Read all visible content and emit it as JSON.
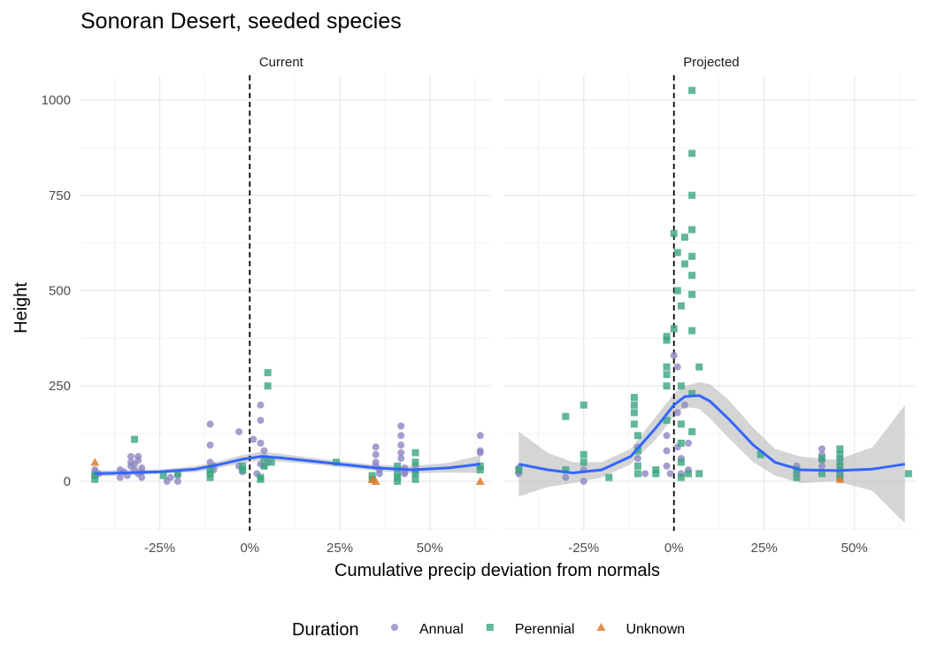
{
  "chart_data": {
    "type": "scatter",
    "title": "Sonoran Desert, seeded species",
    "xlabel": "Cumulative precip deviation from normals",
    "ylabel": "Height",
    "xlim": [
      -0.47,
      0.67
    ],
    "ylim": [
      -130,
      1065
    ],
    "x_ticks": [
      -0.25,
      0,
      0.25,
      0.5
    ],
    "x_tick_labels": [
      "-25%",
      "0%",
      "25%",
      "50%"
    ],
    "y_ticks": [
      0,
      250,
      500,
      750,
      1000
    ],
    "y_tick_labels": [
      "0",
      "250",
      "500",
      "750",
      "1000"
    ],
    "grid": true,
    "reference_line_x": 0,
    "legend": {
      "title": "Duration",
      "position": "bottom",
      "entries": [
        {
          "label": "Annual",
          "color": "#8d87c2",
          "shape": "circle"
        },
        {
          "label": "Perennial",
          "color": "#3aa57e",
          "shape": "square"
        },
        {
          "label": "Unknown",
          "color": "#e07b28",
          "shape": "triangle"
        }
      ]
    },
    "smooth_color": "#3366ff",
    "band_color": "#bfbfbf",
    "panels": [
      {
        "name": "Current",
        "series": [
          {
            "name": "Annual",
            "points": [
              [
                -0.43,
                15
              ],
              [
                -0.43,
                25
              ],
              [
                -0.43,
                30
              ],
              [
                -0.42,
                20
              ],
              [
                -0.36,
                10
              ],
              [
                -0.36,
                30
              ],
              [
                -0.35,
                25
              ],
              [
                -0.34,
                15
              ],
              [
                -0.33,
                40
              ],
              [
                -0.33,
                50
              ],
              [
                -0.33,
                65
              ],
              [
                -0.32,
                30
              ],
              [
                -0.32,
                45
              ],
              [
                -0.31,
                20
              ],
              [
                -0.31,
                65
              ],
              [
                -0.31,
                55
              ],
              [
                -0.3,
                35
              ],
              [
                -0.3,
                25
              ],
              [
                -0.3,
                10
              ],
              [
                -0.23,
                0
              ],
              [
                -0.22,
                10
              ],
              [
                -0.2,
                0
              ],
              [
                -0.2,
                15
              ],
              [
                -0.11,
                150
              ],
              [
                -0.11,
                95
              ],
              [
                -0.11,
                50
              ],
              [
                -0.1,
                40
              ],
              [
                -0.1,
                30
              ],
              [
                -0.03,
                130
              ],
              [
                -0.03,
                40
              ],
              [
                -0.02,
                25
              ],
              [
                0.01,
                110
              ],
              [
                0.02,
                20
              ],
              [
                0.03,
                160
              ],
              [
                0.03,
                200
              ],
              [
                0.03,
                100
              ],
              [
                0.03,
                45
              ],
              [
                0.04,
                40
              ],
              [
                0.04,
                80
              ],
              [
                0.05,
                50
              ],
              [
                0.35,
                90
              ],
              [
                0.35,
                70
              ],
              [
                0.35,
                50
              ],
              [
                0.35,
                40
              ],
              [
                0.36,
                30
              ],
              [
                0.36,
                20
              ],
              [
                0.42,
                145
              ],
              [
                0.42,
                120
              ],
              [
                0.42,
                95
              ],
              [
                0.42,
                75
              ],
              [
                0.42,
                60
              ],
              [
                0.43,
                35
              ],
              [
                0.43,
                25
              ],
              [
                0.43,
                20
              ],
              [
                0.46,
                40
              ],
              [
                0.46,
                25
              ],
              [
                0.64,
                120
              ],
              [
                0.64,
                80
              ],
              [
                0.64,
                75
              ]
            ]
          },
          {
            "name": "Perennial",
            "points": [
              [
                -0.43,
                5
              ],
              [
                -0.43,
                15
              ],
              [
                -0.32,
                110
              ],
              [
                -0.24,
                15
              ],
              [
                -0.2,
                20
              ],
              [
                -0.11,
                10
              ],
              [
                -0.11,
                20
              ],
              [
                -0.11,
                30
              ],
              [
                -0.02,
                40
              ],
              [
                -0.02,
                30
              ],
              [
                0.03,
                5
              ],
              [
                0.03,
                10
              ],
              [
                0.04,
                60
              ],
              [
                0.04,
                40
              ],
              [
                0.05,
                285
              ],
              [
                0.05,
                250
              ],
              [
                0.06,
                50
              ],
              [
                0.24,
                50
              ],
              [
                0.34,
                5
              ],
              [
                0.34,
                15
              ],
              [
                0.41,
                0
              ],
              [
                0.41,
                10
              ],
              [
                0.41,
                20
              ],
              [
                0.41,
                40
              ],
              [
                0.46,
                75
              ],
              [
                0.46,
                50
              ],
              [
                0.46,
                20
              ],
              [
                0.46,
                5
              ],
              [
                0.64,
                40
              ],
              [
                0.64,
                30
              ]
            ]
          },
          {
            "name": "Unknown",
            "points": [
              [
                -0.43,
                50
              ],
              [
                0.34,
                5
              ],
              [
                0.35,
                0
              ],
              [
                0.64,
                0
              ]
            ]
          }
        ],
        "smooth": {
          "x": [
            -0.43,
            -0.35,
            -0.25,
            -0.15,
            -0.08,
            -0.02,
            0.03,
            0.08,
            0.15,
            0.25,
            0.35,
            0.45,
            0.55,
            0.64
          ],
          "y": [
            20,
            22,
            25,
            32,
            45,
            58,
            65,
            62,
            55,
            45,
            35,
            30,
            35,
            45
          ],
          "lower": [
            12,
            15,
            19,
            24,
            36,
            48,
            55,
            52,
            47,
            37,
            27,
            21,
            23,
            22
          ],
          "upper": [
            28,
            30,
            31,
            40,
            54,
            69,
            77,
            73,
            64,
            53,
            43,
            40,
            48,
            68
          ]
        }
      },
      {
        "name": "Projected",
        "series": [
          {
            "name": "Annual",
            "points": [
              [
                -0.43,
                35
              ],
              [
                -0.43,
                25
              ],
              [
                -0.43,
                20
              ],
              [
                -0.3,
                10
              ],
              [
                -0.25,
                0
              ],
              [
                -0.25,
                30
              ],
              [
                -0.1,
                90
              ],
              [
                -0.1,
                60
              ],
              [
                -0.08,
                20
              ],
              [
                -0.02,
                120
              ],
              [
                -0.02,
                80
              ],
              [
                -0.02,
                40
              ],
              [
                -0.01,
                20
              ],
              [
                0.0,
                330
              ],
              [
                0.01,
                300
              ],
              [
                0.01,
                180
              ],
              [
                0.01,
                90
              ],
              [
                0.02,
                60
              ],
              [
                0.02,
                20
              ],
              [
                0.03,
                200
              ],
              [
                0.04,
                100
              ],
              [
                0.04,
                30
              ],
              [
                0.34,
                40
              ],
              [
                0.34,
                20
              ],
              [
                0.41,
                85
              ],
              [
                0.41,
                70
              ],
              [
                0.41,
                55
              ],
              [
                0.41,
                40
              ],
              [
                0.46,
                60
              ],
              [
                0.46,
                40
              ],
              [
                0.46,
                20
              ],
              [
                0.46,
                10
              ]
            ]
          },
          {
            "name": "Perennial",
            "points": [
              [
                -0.43,
                30
              ],
              [
                -0.3,
                170
              ],
              [
                -0.3,
                30
              ],
              [
                -0.25,
                200
              ],
              [
                -0.25,
                70
              ],
              [
                -0.25,
                50
              ],
              [
                -0.18,
                10
              ],
              [
                -0.11,
                220
              ],
              [
                -0.11,
                200
              ],
              [
                -0.11,
                180
              ],
              [
                -0.11,
                150
              ],
              [
                -0.1,
                120
              ],
              [
                -0.1,
                80
              ],
              [
                -0.1,
                40
              ],
              [
                -0.1,
                20
              ],
              [
                -0.05,
                20
              ],
              [
                -0.05,
                30
              ],
              [
                -0.02,
                380
              ],
              [
                -0.02,
                370
              ],
              [
                -0.02,
                300
              ],
              [
                -0.02,
                280
              ],
              [
                -0.02,
                250
              ],
              [
                -0.02,
                160
              ],
              [
                0.0,
                650
              ],
              [
                0.0,
                400
              ],
              [
                0.01,
                600
              ],
              [
                0.01,
                500
              ],
              [
                0.02,
                460
              ],
              [
                0.02,
                250
              ],
              [
                0.02,
                150
              ],
              [
                0.02,
                100
              ],
              [
                0.02,
                50
              ],
              [
                0.02,
                10
              ],
              [
                0.03,
                640
              ],
              [
                0.03,
                570
              ],
              [
                0.04,
                20
              ],
              [
                0.05,
                1025
              ],
              [
                0.05,
                860
              ],
              [
                0.05,
                750
              ],
              [
                0.05,
                660
              ],
              [
                0.05,
                590
              ],
              [
                0.05,
                540
              ],
              [
                0.05,
                490
              ],
              [
                0.05,
                395
              ],
              [
                0.05,
                230
              ],
              [
                0.05,
                130
              ],
              [
                0.07,
                300
              ],
              [
                0.07,
                20
              ],
              [
                0.24,
                70
              ],
              [
                0.34,
                30
              ],
              [
                0.34,
                10
              ],
              [
                0.41,
                60
              ],
              [
                0.41,
                20
              ],
              [
                0.46,
                85
              ],
              [
                0.46,
                70
              ],
              [
                0.46,
                50
              ],
              [
                0.46,
                30
              ],
              [
                0.46,
                10
              ],
              [
                0.65,
                20
              ]
            ]
          },
          {
            "name": "Unknown",
            "points": [
              [
                0.46,
                5
              ]
            ]
          }
        ],
        "smooth": {
          "x": [
            -0.43,
            -0.35,
            -0.28,
            -0.2,
            -0.12,
            -0.05,
            0.0,
            0.03,
            0.07,
            0.1,
            0.15,
            0.22,
            0.28,
            0.35,
            0.45,
            0.55,
            0.64
          ],
          "y": [
            45,
            30,
            22,
            30,
            65,
            140,
            200,
            222,
            225,
            210,
            165,
            95,
            50,
            30,
            28,
            32,
            45
          ],
          "lower": [
            -40,
            -15,
            -5,
            10,
            45,
            110,
            170,
            195,
            190,
            165,
            115,
            50,
            15,
            -5,
            0,
            -25,
            -110
          ],
          "upper": [
            130,
            75,
            50,
            50,
            85,
            170,
            230,
            250,
            260,
            255,
            215,
            140,
            85,
            65,
            56,
            89,
            200
          ]
        }
      }
    ]
  }
}
